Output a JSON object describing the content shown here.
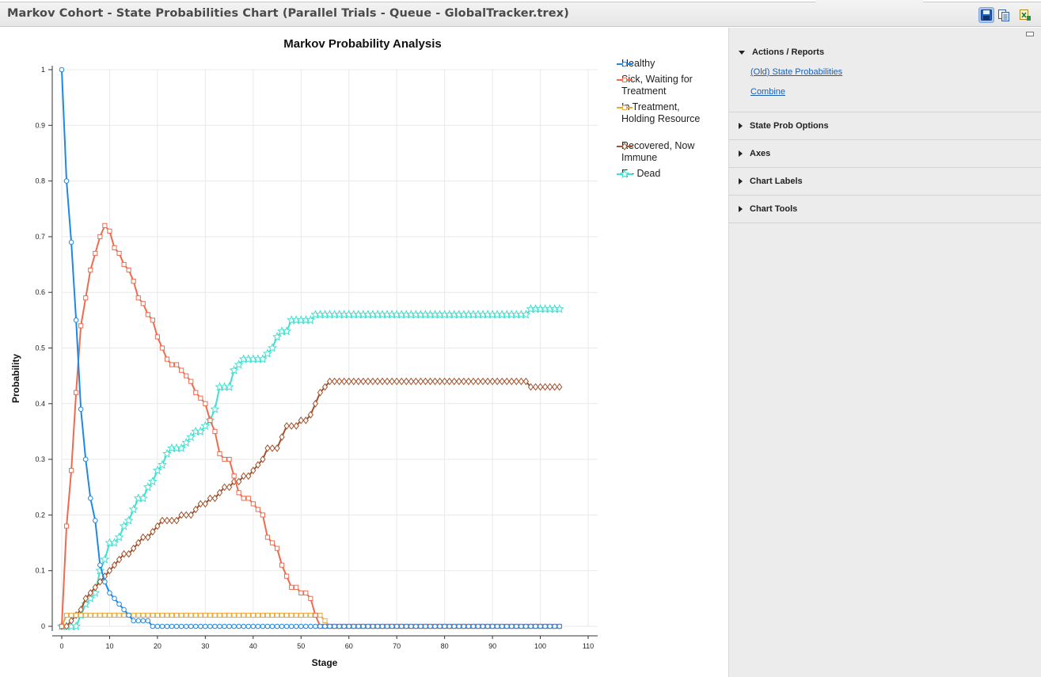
{
  "window": {
    "title": "Markov Cohort - State Probabilities Chart (Parallel Trials - Queue - GlobalTracker.trex)"
  },
  "toolbar": {
    "buttons": [
      {
        "icon": "save-icon",
        "active": true
      },
      {
        "icon": "copy-icon",
        "active": false
      },
      {
        "icon": "export-excel-icon",
        "active": false
      }
    ]
  },
  "side_panel": {
    "sections": [
      {
        "title": "Actions / Reports",
        "expanded": true,
        "links": [
          "(Old) State Probabilities",
          "Combine"
        ]
      },
      {
        "title": "State Prob Options",
        "expanded": false
      },
      {
        "title": "Axes",
        "expanded": false
      },
      {
        "title": "Chart Labels",
        "expanded": false
      },
      {
        "title": "Chart Tools",
        "expanded": false
      }
    ]
  },
  "chart_data": {
    "type": "line",
    "title": "Markov Probability Analysis",
    "xlabel": "Stage",
    "ylabel": "Probability",
    "xlim": [
      0,
      110
    ],
    "ylim": [
      0,
      1
    ],
    "xticks": [
      "0",
      "10",
      "20",
      "30",
      "40",
      "50",
      "60",
      "70",
      "80",
      "90",
      "100",
      "110"
    ],
    "yticks": [
      "0",
      "0.1",
      "0.2",
      "0.3",
      "0.4",
      "0.5",
      "0.6",
      "0.7",
      "0.8",
      "0.9",
      "1"
    ],
    "grid": true,
    "legend_position": "top-right",
    "x": [
      0,
      1,
      2,
      3,
      4,
      5,
      6,
      7,
      8,
      9,
      10,
      11,
      12,
      13,
      14,
      15,
      16,
      17,
      18,
      19,
      20,
      21,
      22,
      23,
      24,
      25,
      26,
      27,
      28,
      29,
      30,
      31,
      32,
      33,
      34,
      35,
      36,
      37,
      38,
      39,
      40,
      41,
      42,
      43,
      44,
      45,
      46,
      47,
      48,
      49,
      50,
      51,
      52,
      53,
      54,
      55,
      56,
      57,
      58,
      59,
      60,
      61,
      62,
      63,
      64,
      65,
      66,
      67,
      68,
      69,
      70,
      71,
      72,
      73,
      74,
      75,
      76,
      77,
      78,
      79,
      80,
      81,
      82,
      83,
      84,
      85,
      86,
      87,
      88,
      89,
      90,
      91,
      92,
      93,
      94,
      95,
      96,
      97,
      98,
      99,
      100,
      101,
      102,
      103,
      104
    ],
    "series": [
      {
        "name": "Healthy",
        "color": "#1e88e5",
        "marker": "circle",
        "values": [
          1,
          0.8,
          0.69,
          0.55,
          0.39,
          0.3,
          0.23,
          0.19,
          0.11,
          0.08,
          0.06,
          0.05,
          0.04,
          0.03,
          0.02,
          0.01,
          0.01,
          0.01,
          0.01,
          0,
          0,
          0,
          0,
          0,
          0,
          0,
          0,
          0,
          0,
          0,
          0,
          0,
          0,
          0,
          0,
          0,
          0,
          0,
          0,
          0,
          0,
          0,
          0,
          0,
          0,
          0,
          0,
          0,
          0,
          0,
          0,
          0,
          0,
          0,
          0,
          0,
          0,
          0,
          0,
          0,
          0,
          0,
          0,
          0,
          0,
          0,
          0,
          0,
          0,
          0,
          0,
          0,
          0,
          0,
          0,
          0,
          0,
          0,
          0,
          0,
          0,
          0,
          0,
          0,
          0,
          0,
          0,
          0,
          0,
          0,
          0,
          0,
          0,
          0,
          0,
          0,
          0,
          0,
          0,
          0,
          0,
          0,
          0,
          0,
          0
        ]
      },
      {
        "name": "Sick, Waiting for Treatment",
        "color": "#ee6b4d",
        "marker": "square",
        "values": [
          0,
          0.18,
          0.28,
          0.42,
          0.54,
          0.59,
          0.64,
          0.67,
          0.7,
          0.72,
          0.71,
          0.68,
          0.67,
          0.65,
          0.64,
          0.62,
          0.59,
          0.58,
          0.56,
          0.55,
          0.52,
          0.5,
          0.48,
          0.47,
          0.47,
          0.46,
          0.45,
          0.44,
          0.42,
          0.41,
          0.4,
          0.37,
          0.35,
          0.31,
          0.3,
          0.3,
          0.27,
          0.24,
          0.23,
          0.23,
          0.22,
          0.21,
          0.2,
          0.16,
          0.15,
          0.14,
          0.11,
          0.09,
          0.07,
          0.07,
          0.06,
          0.06,
          0.05,
          0.02,
          0,
          0,
          0,
          0,
          0,
          0,
          0,
          0,
          0,
          0,
          0,
          0,
          0,
          0,
          0,
          0,
          0,
          0,
          0,
          0,
          0,
          0,
          0,
          0,
          0,
          0,
          0,
          0,
          0,
          0,
          0,
          0,
          0,
          0,
          0,
          0,
          0,
          0,
          0,
          0,
          0,
          0,
          0,
          0,
          0,
          0,
          0,
          0,
          0,
          0,
          0
        ]
      },
      {
        "name": "In Treatment, Holding Resource",
        "color": "#e8a838",
        "marker": "square",
        "values": [
          0,
          0.02,
          0.02,
          0.02,
          0.02,
          0.02,
          0.02,
          0.02,
          0.02,
          0.02,
          0.02,
          0.02,
          0.02,
          0.02,
          0.02,
          0.02,
          0.02,
          0.02,
          0.02,
          0.02,
          0.02,
          0.02,
          0.02,
          0.02,
          0.02,
          0.02,
          0.02,
          0.02,
          0.02,
          0.02,
          0.02,
          0.02,
          0.02,
          0.02,
          0.02,
          0.02,
          0.02,
          0.02,
          0.02,
          0.02,
          0.02,
          0.02,
          0.02,
          0.02,
          0.02,
          0.02,
          0.02,
          0.02,
          0.02,
          0.02,
          0.02,
          0.02,
          0.02,
          0.02,
          0.02,
          0.01,
          0,
          0,
          0,
          0,
          0,
          0,
          0,
          0,
          0,
          0,
          0,
          0,
          0,
          0,
          0,
          0,
          0,
          0,
          0,
          0,
          0,
          0,
          0,
          0,
          0,
          0,
          0,
          0,
          0,
          0,
          0,
          0,
          0,
          0,
          0,
          0,
          0,
          0,
          0,
          0,
          0,
          0,
          0,
          0,
          0,
          0,
          0,
          0,
          0
        ]
      },
      {
        "name": "Recovered, Now Immune",
        "color": "#a0522d",
        "marker": "diamond",
        "values": [
          0,
          0,
          0.01,
          0.02,
          0.03,
          0.05,
          0.06,
          0.07,
          0.08,
          0.09,
          0.1,
          0.11,
          0.12,
          0.13,
          0.13,
          0.14,
          0.15,
          0.16,
          0.16,
          0.17,
          0.18,
          0.19,
          0.19,
          0.19,
          0.19,
          0.2,
          0.2,
          0.2,
          0.21,
          0.22,
          0.22,
          0.23,
          0.23,
          0.24,
          0.25,
          0.25,
          0.26,
          0.26,
          0.27,
          0.27,
          0.28,
          0.29,
          0.3,
          0.32,
          0.32,
          0.32,
          0.34,
          0.36,
          0.36,
          0.36,
          0.37,
          0.37,
          0.38,
          0.4,
          0.42,
          0.43,
          0.44,
          0.44,
          0.44,
          0.44,
          0.44,
          0.44,
          0.44,
          0.44,
          0.44,
          0.44,
          0.44,
          0.44,
          0.44,
          0.44,
          0.44,
          0.44,
          0.44,
          0.44,
          0.44,
          0.44,
          0.44,
          0.44,
          0.44,
          0.44,
          0.44,
          0.44,
          0.44,
          0.44,
          0.44,
          0.44,
          0.44,
          0.44,
          0.44,
          0.44,
          0.44,
          0.44,
          0.44,
          0.44,
          0.44,
          0.44,
          0.44,
          0.44,
          0.43,
          0.43,
          0.43,
          0.43,
          0.43,
          0.43,
          0.43
        ]
      },
      {
        "name": "E - Dead",
        "color": "#40e0d0",
        "marker": "star",
        "values": [
          0,
          0,
          0,
          0,
          0.02,
          0.04,
          0.05,
          0.06,
          0.1,
          0.12,
          0.15,
          0.15,
          0.16,
          0.18,
          0.19,
          0.21,
          0.23,
          0.23,
          0.25,
          0.26,
          0.28,
          0.29,
          0.31,
          0.32,
          0.32,
          0.32,
          0.33,
          0.34,
          0.35,
          0.35,
          0.36,
          0.37,
          0.39,
          0.43,
          0.43,
          0.43,
          0.46,
          0.47,
          0.48,
          0.48,
          0.48,
          0.48,
          0.48,
          0.49,
          0.5,
          0.52,
          0.53,
          0.53,
          0.55,
          0.55,
          0.55,
          0.55,
          0.55,
          0.56,
          0.56,
          0.56,
          0.56,
          0.56,
          0.56,
          0.56,
          0.56,
          0.56,
          0.56,
          0.56,
          0.56,
          0.56,
          0.56,
          0.56,
          0.56,
          0.56,
          0.56,
          0.56,
          0.56,
          0.56,
          0.56,
          0.56,
          0.56,
          0.56,
          0.56,
          0.56,
          0.56,
          0.56,
          0.56,
          0.56,
          0.56,
          0.56,
          0.56,
          0.56,
          0.56,
          0.56,
          0.56,
          0.56,
          0.56,
          0.56,
          0.56,
          0.56,
          0.56,
          0.56,
          0.57,
          0.57,
          0.57,
          0.57,
          0.57,
          0.57,
          0.57
        ]
      }
    ]
  }
}
